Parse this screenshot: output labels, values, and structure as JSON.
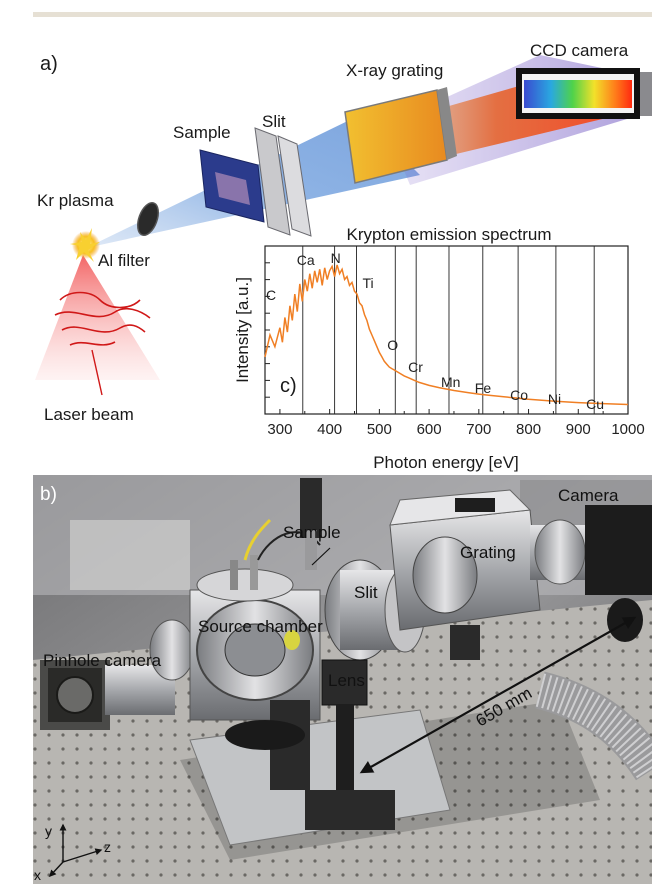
{
  "panel_a": {
    "label": "a)",
    "components": {
      "ccd_camera": "CCD camera",
      "xray_grating": "X-ray grating",
      "slit": "Slit",
      "sample": "Sample",
      "kr_plasma": "Kr plasma",
      "al_filter": "Al filter",
      "laser_beam": "Laser beam"
    }
  },
  "chart_data": {
    "type": "line",
    "title": "Krypton emission spectrum",
    "panel_label": "c)",
    "xlabel": "Photon energy [eV]",
    "ylabel": "Intensity [a.u.]",
    "xlim": [
      270,
      1000
    ],
    "xticks": [
      300,
      400,
      500,
      600,
      700,
      800,
      900,
      1000
    ],
    "grid": false,
    "line_color": "#f07f24",
    "edges": [
      {
        "name": "C",
        "x": 284,
        "show_line": false
      },
      {
        "name": "Ca",
        "x": 346
      },
      {
        "name": "N",
        "x": 410
      },
      {
        "name": "Ti",
        "x": 454
      },
      {
        "name": "O",
        "x": 532
      },
      {
        "name": "Cr",
        "x": 574
      },
      {
        "name": "Mn",
        "x": 640
      },
      {
        "name": "Fe",
        "x": 708
      },
      {
        "name": "Co",
        "x": 779
      },
      {
        "name": "Ni",
        "x": 855
      },
      {
        "name": "Cu",
        "x": 932
      }
    ],
    "x": [
      270,
      280,
      290,
      300,
      305,
      310,
      315,
      320,
      325,
      330,
      335,
      340,
      345,
      350,
      355,
      360,
      365,
      370,
      375,
      380,
      385,
      390,
      395,
      400,
      405,
      410,
      415,
      420,
      425,
      430,
      435,
      440,
      445,
      450,
      455,
      460,
      465,
      470,
      475,
      480,
      485,
      490,
      495,
      500,
      505,
      510,
      515,
      520,
      525,
      530,
      540,
      550,
      560,
      570,
      580,
      600,
      620,
      650,
      680,
      700,
      720,
      750,
      780,
      800,
      850,
      900,
      950,
      1000
    ],
    "y": [
      0.35,
      0.5,
      0.42,
      0.55,
      0.45,
      0.62,
      0.52,
      0.7,
      0.6,
      0.78,
      0.66,
      0.85,
      0.73,
      0.88,
      0.8,
      0.92,
      0.82,
      0.94,
      0.86,
      0.95,
      0.84,
      0.96,
      0.88,
      0.94,
      0.97,
      0.9,
      0.98,
      0.92,
      0.95,
      0.88,
      0.9,
      0.84,
      0.86,
      0.8,
      0.78,
      0.72,
      0.7,
      0.64,
      0.6,
      0.54,
      0.5,
      0.46,
      0.42,
      0.38,
      0.35,
      0.32,
      0.3,
      0.28,
      0.27,
      0.26,
      0.24,
      0.22,
      0.205,
      0.19,
      0.175,
      0.155,
      0.14,
      0.12,
      0.105,
      0.095,
      0.088,
      0.077,
      0.067,
      0.06,
      0.047,
      0.037,
      0.03,
      0.024
    ]
  },
  "panel_b": {
    "label": "b)",
    "labels": {
      "camera": "Camera",
      "sample": "Sample",
      "grating": "Grating",
      "slit": "Slit",
      "source_chamber": "Source chamber",
      "pinhole_camera": "Pinhole camera",
      "lens": "Lens",
      "distance": "650 mm"
    },
    "axes": {
      "y": "y",
      "z": "z",
      "x": "x"
    }
  }
}
